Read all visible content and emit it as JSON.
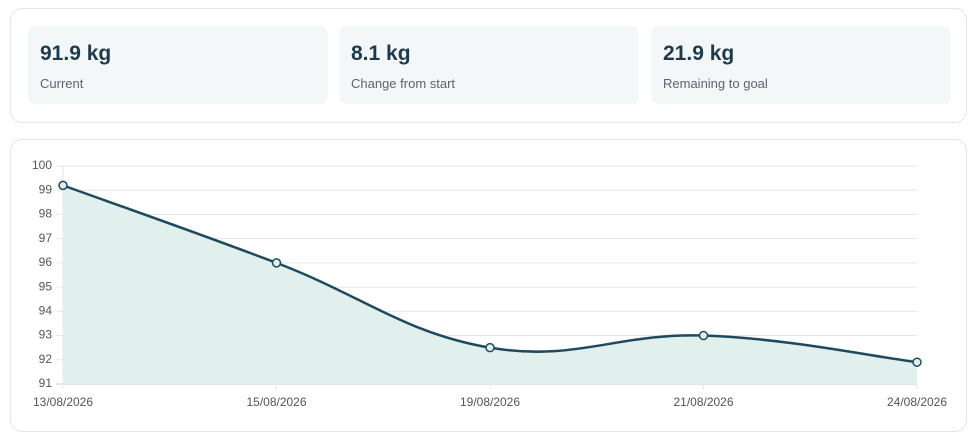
{
  "stats": [
    {
      "value": "91.9 kg",
      "label": "Current"
    },
    {
      "value": "8.1 kg",
      "label": "Change from start"
    },
    {
      "value": "21.9 kg",
      "label": "Remaining to goal"
    }
  ],
  "chart_data": {
    "type": "line",
    "categories": [
      "13/08/2026",
      "15/08/2026",
      "19/08/2026",
      "21/08/2026",
      "24/08/2026"
    ],
    "values": [
      99.2,
      96.0,
      92.5,
      93.0,
      91.9
    ],
    "color": "#1f4a5e",
    "fill": "#e1f0ec",
    "ylim": [
      91,
      100
    ],
    "yticks": [
      91,
      92,
      93,
      94,
      95,
      96,
      97,
      98,
      99,
      100
    ],
    "grid": true
  }
}
